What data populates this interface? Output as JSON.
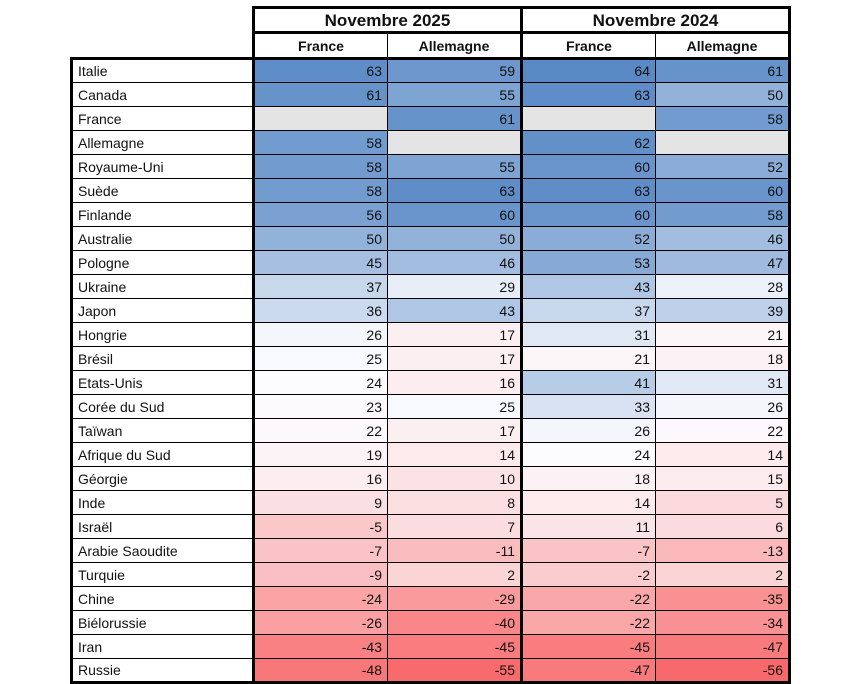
{
  "chart_data": {
    "type": "heatmap",
    "title": "",
    "col_groups": [
      {
        "label": "Novembre 2025"
      },
      {
        "label": "Novembre 2024"
      }
    ],
    "sub_columns": [
      {
        "label": "France"
      },
      {
        "label": "Allemagne"
      },
      {
        "label": "France"
      },
      {
        "label": "Allemagne"
      }
    ],
    "rows": [
      {
        "label": "Italie",
        "values": [
          63,
          59,
          64,
          61
        ]
      },
      {
        "label": "Canada",
        "values": [
          61,
          55,
          63,
          50
        ]
      },
      {
        "label": "France",
        "values": [
          null,
          61,
          null,
          58
        ]
      },
      {
        "label": "Allemagne",
        "values": [
          58,
          null,
          62,
          null
        ]
      },
      {
        "label": "Royaume-Uni",
        "values": [
          58,
          55,
          60,
          52
        ]
      },
      {
        "label": "Suède",
        "values": [
          58,
          63,
          63,
          60
        ]
      },
      {
        "label": "Finlande",
        "values": [
          56,
          60,
          60,
          58
        ]
      },
      {
        "label": "Australie",
        "values": [
          50,
          50,
          52,
          46
        ]
      },
      {
        "label": "Pologne",
        "values": [
          45,
          46,
          53,
          47
        ]
      },
      {
        "label": "Ukraine",
        "values": [
          37,
          29,
          43,
          28
        ]
      },
      {
        "label": "Japon",
        "values": [
          36,
          43,
          37,
          39
        ]
      },
      {
        "label": "Hongrie",
        "values": [
          26,
          17,
          31,
          21
        ]
      },
      {
        "label": "Brésil",
        "values": [
          25,
          17,
          21,
          18
        ]
      },
      {
        "label": "Etats-Unis",
        "values": [
          24,
          16,
          41,
          31
        ]
      },
      {
        "label": "Corée du Sud",
        "values": [
          23,
          25,
          33,
          26
        ]
      },
      {
        "label": "Taïwan",
        "values": [
          22,
          17,
          26,
          22
        ]
      },
      {
        "label": "Afrique du Sud",
        "values": [
          19,
          14,
          24,
          14
        ]
      },
      {
        "label": "Géorgie",
        "values": [
          16,
          10,
          18,
          15
        ]
      },
      {
        "label": "Inde",
        "values": [
          9,
          8,
          14,
          5
        ]
      },
      {
        "label": "Israël",
        "values": [
          -5,
          7,
          11,
          6
        ]
      },
      {
        "label": "Arabie Saoudite",
        "values": [
          -7,
          -11,
          -7,
          -13
        ]
      },
      {
        "label": "Turquie",
        "values": [
          -9,
          2,
          -2,
          2
        ]
      },
      {
        "label": "Chine",
        "values": [
          -24,
          -29,
          -22,
          -35
        ]
      },
      {
        "label": "Biélorussie",
        "values": [
          -26,
          -40,
          -22,
          -34
        ]
      },
      {
        "label": "Iran",
        "values": [
          -43,
          -45,
          -45,
          -47
        ]
      },
      {
        "label": "Russie",
        "values": [
          -48,
          -55,
          -47,
          -56
        ]
      }
    ],
    "color_scale": {
      "min_value": -56,
      "mid_value": 24,
      "max_value": 64,
      "min_color": "#F8696B",
      "mid_color": "#FCFCFF",
      "max_color": "#5A8AC6",
      "blank_color": "#E4E4E4"
    }
  }
}
